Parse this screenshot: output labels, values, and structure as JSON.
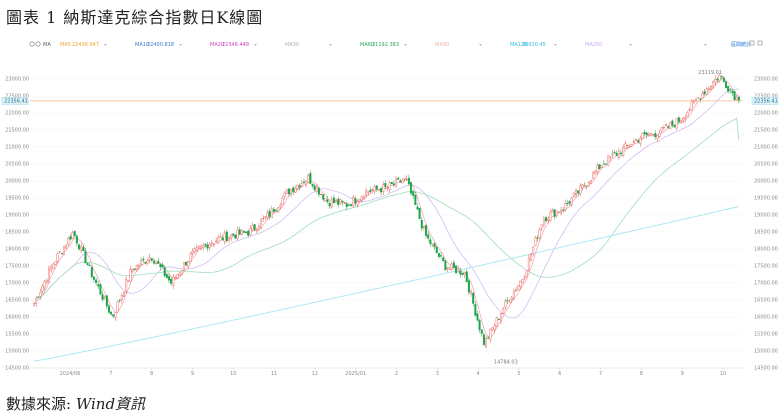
{
  "figure": {
    "title": "圖表 1 納斯達克綜合指數日K線圖",
    "source_prefix": "數據來源:",
    "source_name": "Wind資訊"
  },
  "toolbar": {
    "ma_label": "MA",
    "reset_label": "區間統計"
  },
  "legend": [
    {
      "label": "MA5",
      "value": "22436.047",
      "color": "#f0a030"
    },
    {
      "label": "MA10",
      "value": "22400.818",
      "color": "#3a78c8"
    },
    {
      "label": "MA20",
      "value": "22346.448",
      "color": "#d040c0"
    },
    {
      "label": "MA30",
      "value": "",
      "color": "#b0b0b0"
    },
    {
      "label": "MA60",
      "value": "21192.383",
      "color": "#2aa860"
    },
    {
      "label": "MA90",
      "value": "",
      "color": "#f0b0b0"
    },
    {
      "label": "MA120",
      "value": "20010.45",
      "color": "#30b8e0"
    },
    {
      "label": "MA250",
      "value": "",
      "color": "#c8a8f0"
    },
    {
      "label": "",
      "value": "",
      "color": "#e0e0e0"
    }
  ],
  "colors": {
    "up": "#e6544a",
    "down": "#1fa34a",
    "ma_short": "#f2a0b4",
    "ma_mid": "#c9b7ef",
    "ma_60": "#9fdcbc",
    "ma_250": "#a9e6f4",
    "price_line": "#f3b38a"
  },
  "chart_data": {
    "type": "candlestick",
    "title": "",
    "ylim": [
      14500,
      23500
    ],
    "y_ticks": [
      "14500.00",
      "15000.00",
      "15500.00",
      "16000.00",
      "16500.00",
      "17000.00",
      "17500.00",
      "18000.00",
      "18500.00",
      "19000.00",
      "19500.00",
      "20000.00",
      "20500.00",
      "21000.00",
      "21500.00",
      "22000.00",
      "22500.00",
      "23000.00"
    ],
    "x_ticks": [
      "2024/06",
      "7",
      "8",
      "9",
      "10",
      "11",
      "12",
      "2025/01",
      "2",
      "3",
      "4",
      "5",
      "6",
      "7",
      "8",
      "9",
      "10"
    ],
    "current_price": "22356.41",
    "annotations": {
      "high_label": "23119.01",
      "low_label": "14784.03"
    },
    "anchors": [
      {
        "x": "2024/06",
        "close": 16400
      },
      {
        "x": "7",
        "close": 17600
      },
      {
        "x": "7",
        "close": 18500
      },
      {
        "x": "8",
        "close": 17200
      },
      {
        "x": "8",
        "close": 16000
      },
      {
        "x": "8",
        "close": 17400
      },
      {
        "x": "9",
        "close": 17800
      },
      {
        "x": "9",
        "close": 17000
      },
      {
        "x": "9",
        "close": 17800
      },
      {
        "x": "10",
        "close": 18200
      },
      {
        "x": "10",
        "close": 18400
      },
      {
        "x": "11",
        "close": 18500
      },
      {
        "x": "11",
        "close": 19000
      },
      {
        "x": "12",
        "close": 19700
      },
      {
        "x": "12",
        "close": 20100
      },
      {
        "x": "12",
        "close": 19400
      },
      {
        "x": "2025/01",
        "close": 19300
      },
      {
        "x": "2025/01",
        "close": 19700
      },
      {
        "x": "2",
        "close": 19800
      },
      {
        "x": "2",
        "close": 20050
      },
      {
        "x": "3",
        "close": 18400
      },
      {
        "x": "3",
        "close": 17500
      },
      {
        "x": "4",
        "close": 17300
      },
      {
        "x": "4",
        "close": 15200
      },
      {
        "x": "4",
        "close": 16300
      },
      {
        "x": "5",
        "close": 17200
      },
      {
        "x": "5",
        "close": 18900
      },
      {
        "x": "6",
        "close": 19200
      },
      {
        "x": "6",
        "close": 19800
      },
      {
        "x": "7",
        "close": 20500
      },
      {
        "x": "7",
        "close": 20900
      },
      {
        "x": "8",
        "close": 21300
      },
      {
        "x": "8",
        "close": 21450
      },
      {
        "x": "9",
        "close": 21800
      },
      {
        "x": "9",
        "close": 22500
      },
      {
        "x": "10",
        "close": 23100
      },
      {
        "x": "10",
        "close": 22356
      }
    ],
    "ma60_end": 21192,
    "ma120_end": 20010,
    "ma250_end": 19250
  }
}
